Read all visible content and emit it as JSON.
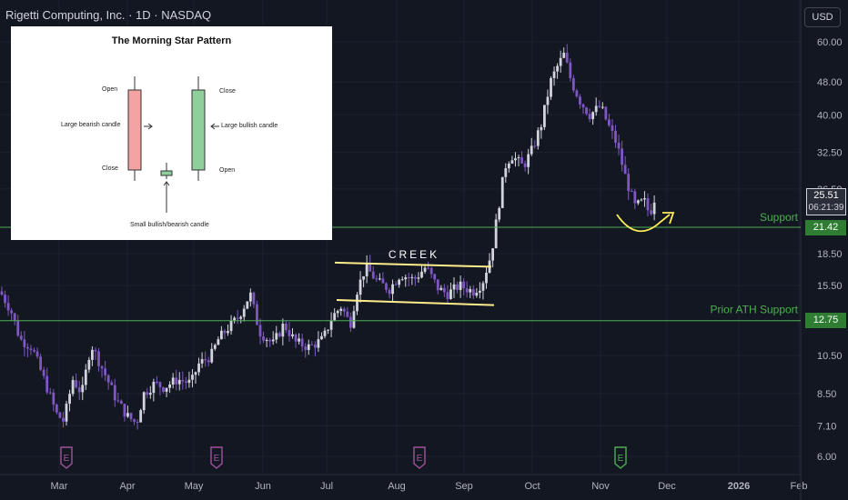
{
  "header": {
    "title": "Rigetti Computing, Inc. · 1D · NASDAQ",
    "currency": "USD"
  },
  "inset": {
    "title": "The Morning Star Pattern",
    "labels": {
      "open_left": "Open",
      "large_bearish": "Large bearish candle",
      "close_left": "Close",
      "close_right": "Close",
      "large_bullish": "Large bullish candle",
      "open_right": "Open",
      "small_candle": "Small bullish/bearish candle"
    }
  },
  "annotations": {
    "creek": "CREEK",
    "support": "Support",
    "prior_ath": "Prior ATH Support"
  },
  "price_tags": {
    "last_price": "25.51",
    "countdown": "06:21:39",
    "support_price": "21.42",
    "ath_price": "12.75"
  },
  "colors": {
    "background": "#131722",
    "bull": "#d1d4dc",
    "bear": "#7e57c2",
    "support_line": "#4caf50",
    "pattern_line": "#ffee8c",
    "earnings_badge": "#a0529c",
    "earnings_next": "#4caf50"
  },
  "chart_data": {
    "type": "candlestick",
    "title": "Rigetti Computing, Inc. · 1D · NASDAQ",
    "y_scale": "log",
    "y_ticks": [
      "60.00",
      "48.00",
      "40.00",
      "32.50",
      "26.50",
      "21.42",
      "18.50",
      "15.50",
      "12.75",
      "10.50",
      "8.50",
      "7.10",
      "6.00"
    ],
    "x_ticks": [
      "Mar",
      "Apr",
      "May",
      "Jun",
      "Jul",
      "Aug",
      "Sep",
      "Oct",
      "Nov",
      "Dec",
      "2026",
      "Feb"
    ],
    "horizontal_lines": [
      {
        "label": "Support",
        "value": 21.42
      },
      {
        "label": "Prior ATH Support",
        "value": 12.75
      }
    ],
    "channel": {
      "label": "CREEK",
      "upper": [
        17.6,
        17.2
      ],
      "lower": [
        14.3,
        13.9
      ]
    },
    "earnings_markers": [
      {
        "date": "2025-03",
        "label": "E"
      },
      {
        "date": "2025-05",
        "label": "E"
      },
      {
        "date": "2025-08",
        "label": "E"
      },
      {
        "date": "2025-11",
        "label": "E"
      }
    ],
    "series": [
      {
        "period": "Feb-late",
        "approx_close": 14.5
      },
      {
        "period": "Mar",
        "approx_close": 8.0
      },
      {
        "period": "Apr",
        "approx_close": 7.3
      },
      {
        "period": "May",
        "approx_close": 10.5
      },
      {
        "period": "Jun",
        "approx_close": 12.0
      },
      {
        "period": "Jul",
        "approx_close": 16.0
      },
      {
        "period": "Aug",
        "approx_close": 15.5
      },
      {
        "period": "Sep",
        "approx_close": 30.0
      },
      {
        "period": "Oct",
        "approx_close": 55.0
      },
      {
        "period": "Nov",
        "approx_close": 25.0
      },
      {
        "period": "last",
        "approx_close": 25.51
      }
    ]
  }
}
